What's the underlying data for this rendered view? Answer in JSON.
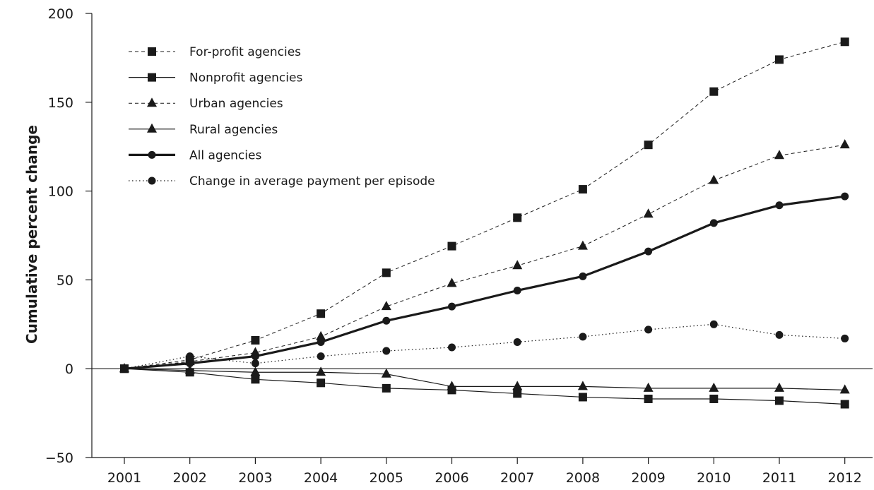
{
  "chart_data": {
    "type": "line",
    "title": "",
    "xlabel": "",
    "ylabel": "Cumulative percent change",
    "categories": [
      "2001",
      "2002",
      "2003",
      "2004",
      "2005",
      "2006",
      "2007",
      "2008",
      "2009",
      "2010",
      "2011",
      "2012"
    ],
    "ylim": [
      -50,
      200
    ],
    "yticks": [
      -50,
      0,
      50,
      100,
      150,
      200
    ],
    "y_tick_labels": [
      "−50",
      "0",
      "50",
      "100",
      "150",
      "200"
    ],
    "zero_line": true,
    "grid": false,
    "legend_position": "top-left",
    "series": [
      {
        "name": "For-profit agencies",
        "marker": "square",
        "line": "dashed",
        "values": [
          0,
          5,
          16,
          31,
          54,
          69,
          85,
          101,
          126,
          156,
          174,
          184
        ]
      },
      {
        "name": "Nonprofit agencies",
        "marker": "square",
        "line": "solid",
        "values": [
          0,
          -2,
          -6,
          -8,
          -11,
          -12,
          -14,
          -16,
          -17,
          -17,
          -18,
          -20
        ]
      },
      {
        "name": "Urban agencies",
        "marker": "triangle",
        "line": "dashed",
        "values": [
          0,
          4,
          9,
          18,
          35,
          48,
          58,
          69,
          87,
          106,
          120,
          126
        ]
      },
      {
        "name": "Rural agencies",
        "marker": "triangle",
        "line": "solid",
        "values": [
          0,
          -1,
          -2,
          -2,
          -3,
          -10,
          -10,
          -10,
          -11,
          -11,
          -11,
          -12
        ]
      },
      {
        "name": "All agencies",
        "marker": "circle",
        "line": "bold",
        "values": [
          0,
          3,
          7,
          15,
          27,
          35,
          44,
          52,
          66,
          82,
          92,
          97
        ]
      },
      {
        "name": "Change in average payment per episode",
        "marker": "circle",
        "line": "dotted",
        "values": [
          0,
          7,
          3,
          7,
          10,
          12,
          15,
          18,
          22,
          25,
          19,
          17
        ]
      }
    ]
  }
}
